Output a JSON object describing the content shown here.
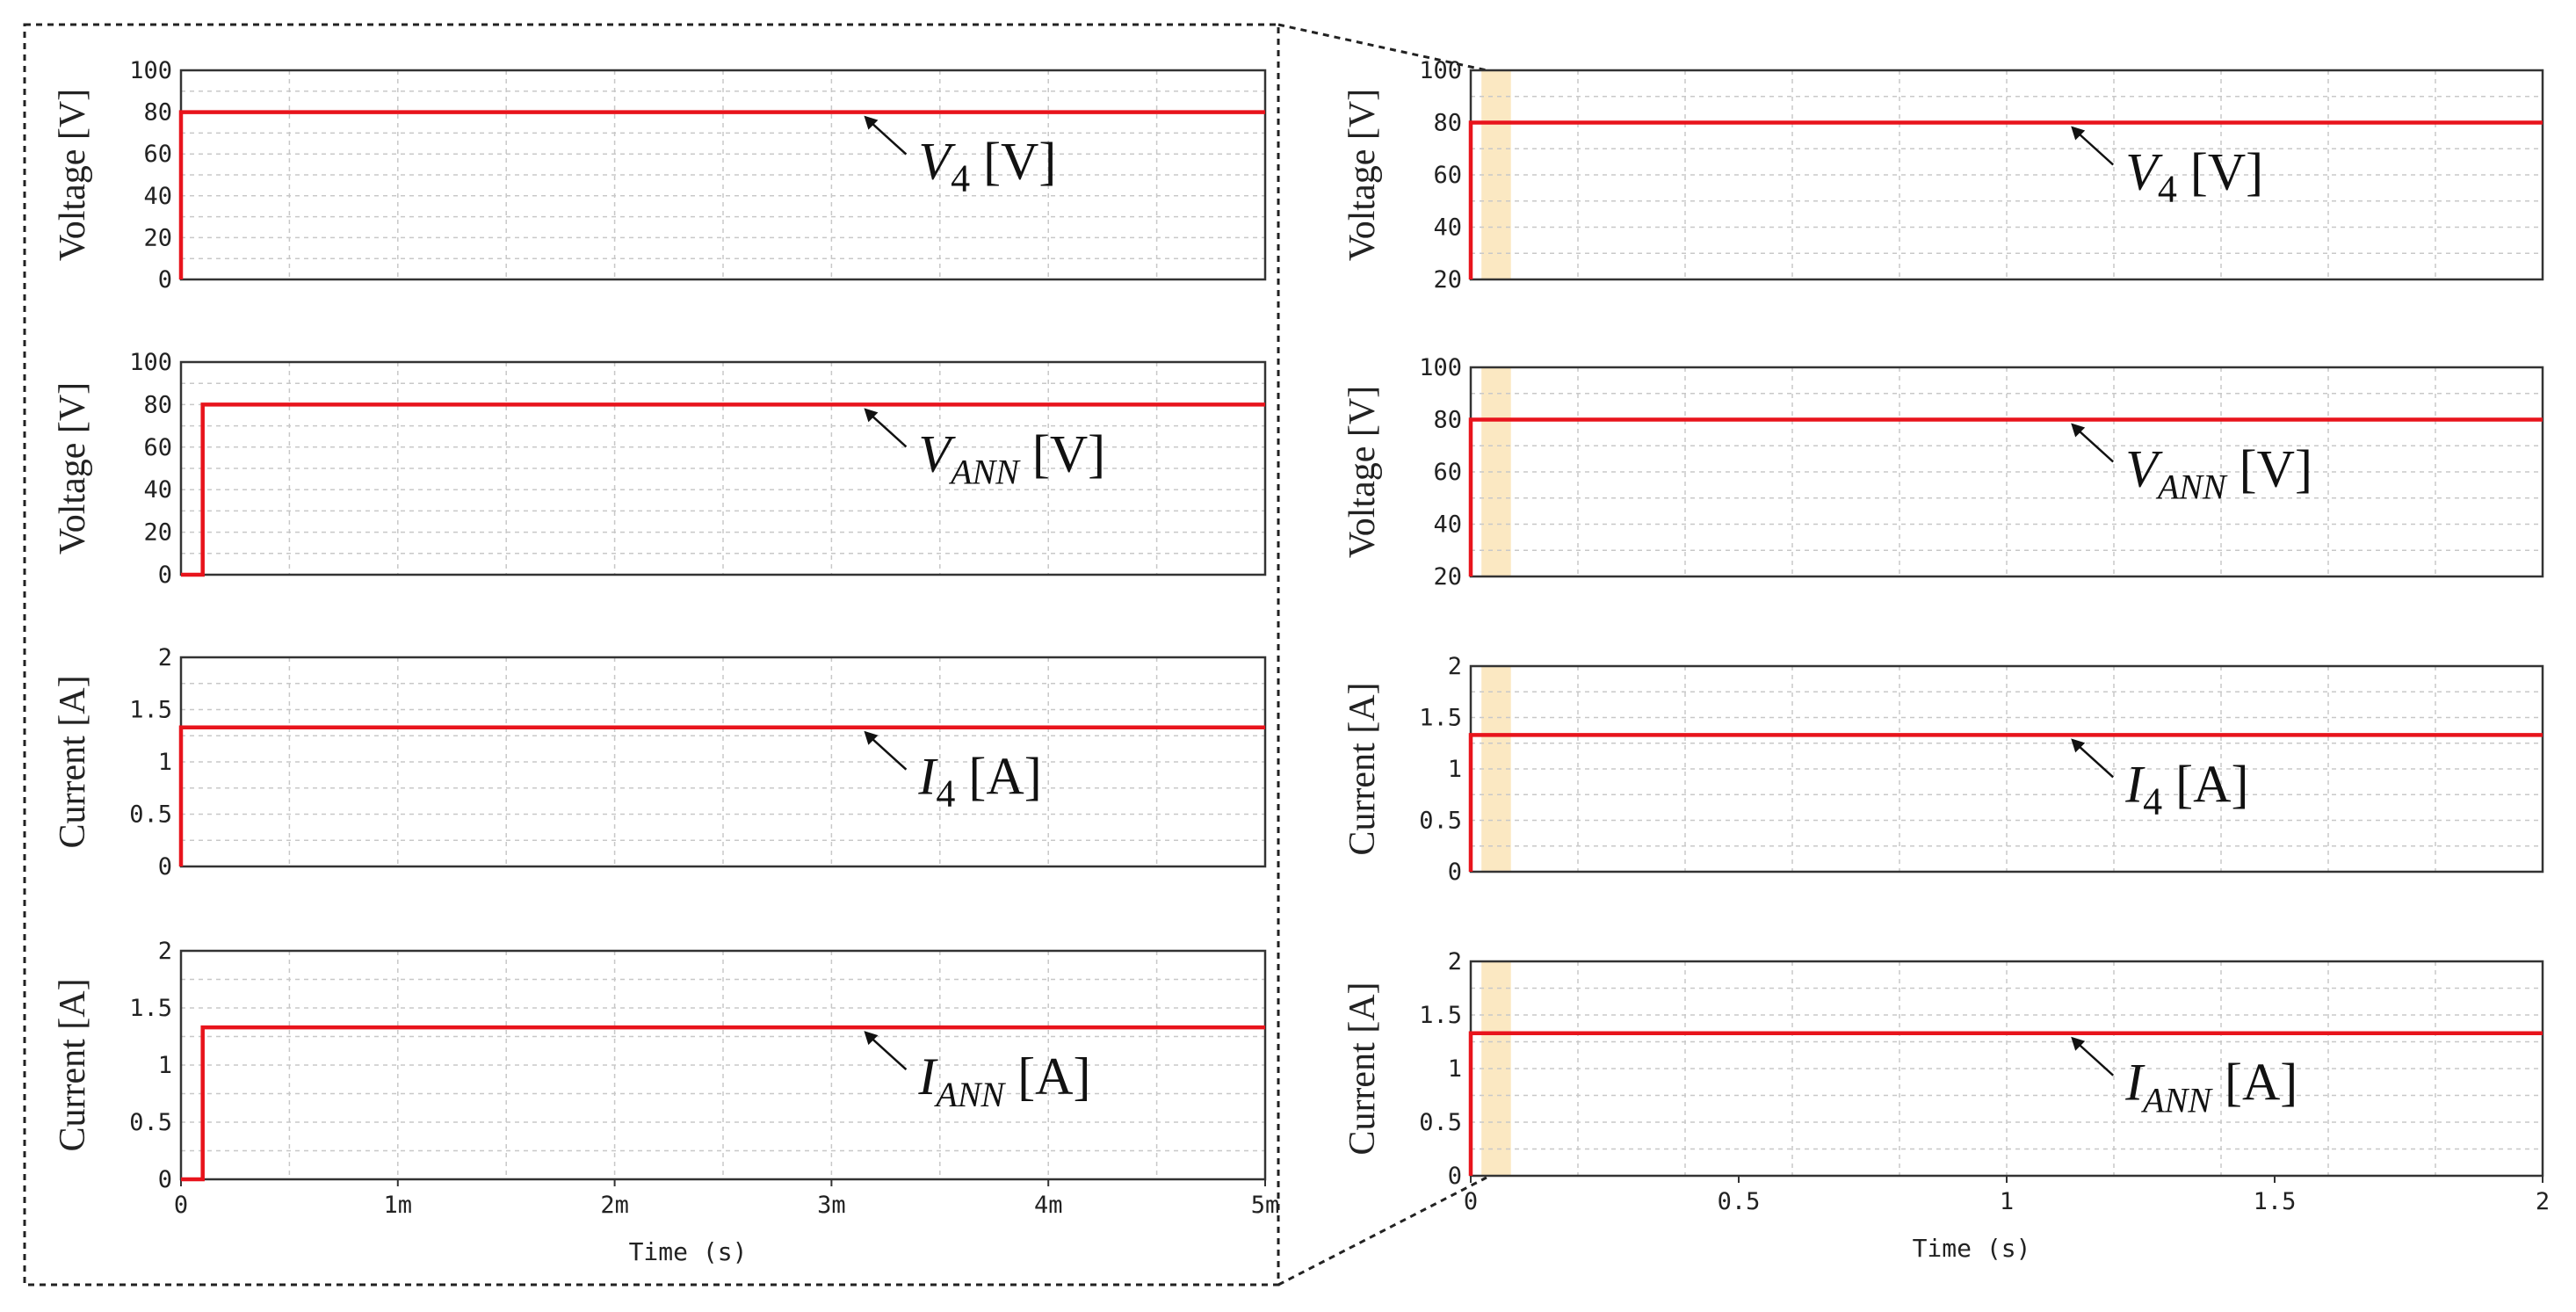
{
  "colors": {
    "trace": "#e8141c",
    "grid": "#c8c8c8",
    "highlight": "#fbe8c2",
    "axis": "#333333",
    "text": "#222222"
  },
  "chart_data": [
    {
      "panel": "left",
      "type": "line",
      "title": "",
      "ylabel": "Voltage [V]",
      "ylim": [
        0,
        100
      ],
      "yticks": [
        0,
        20,
        40,
        60,
        80,
        100
      ],
      "ytick_labels": [
        "0",
        "20",
        "40",
        "60",
        "80",
        "100"
      ],
      "xlim": [
        0,
        5
      ],
      "x_unit": "ms",
      "series": [
        {
          "name": "V4 [V]",
          "points": [
            [
              0,
              0
            ],
            [
              0,
              80
            ],
            [
              5,
              80
            ]
          ]
        }
      ],
      "annotation": {
        "main": "V",
        "sub": "4",
        "unit": " [V]",
        "x": 3.15,
        "y": 80
      }
    },
    {
      "panel": "left",
      "type": "line",
      "title": "",
      "ylabel": "Voltage [V]",
      "ylim": [
        0,
        100
      ],
      "yticks": [
        0,
        20,
        40,
        60,
        80,
        100
      ],
      "ytick_labels": [
        "0",
        "20",
        "40",
        "60",
        "80",
        "100"
      ],
      "xlim": [
        0,
        5
      ],
      "x_unit": "ms",
      "series": [
        {
          "name": "VANN [V]",
          "points": [
            [
              0,
              0
            ],
            [
              0.1,
              0
            ],
            [
              0.1,
              80
            ],
            [
              5,
              80
            ]
          ]
        }
      ],
      "annotation": {
        "main": "V",
        "sub": "ANN",
        "unit": " [V]",
        "x": 3.15,
        "y": 80
      }
    },
    {
      "panel": "left",
      "type": "line",
      "title": "",
      "ylabel": "Current [A]",
      "ylim": [
        0,
        2
      ],
      "yticks": [
        0,
        0.5,
        1,
        1.5,
        2
      ],
      "ytick_labels": [
        "0",
        "0.5",
        "1",
        "1.5",
        "2"
      ],
      "xlim": [
        0,
        5
      ],
      "x_unit": "ms",
      "series": [
        {
          "name": "I4 [A]",
          "points": [
            [
              0,
              0
            ],
            [
              0,
              1.33
            ],
            [
              5,
              1.33
            ]
          ]
        }
      ],
      "annotation": {
        "main": "I",
        "sub": "4",
        "unit": " [A]",
        "x": 3.15,
        "y": 1.33
      }
    },
    {
      "panel": "left",
      "type": "line",
      "title": "",
      "ylabel": "Current [A]",
      "ylim": [
        0,
        2
      ],
      "yticks": [
        0,
        0.5,
        1,
        1.5,
        2
      ],
      "ytick_labels": [
        "0",
        "0.5",
        "1",
        "1.5",
        "2"
      ],
      "xlim": [
        0,
        5
      ],
      "x_unit": "ms",
      "xticks": [
        0,
        1,
        2,
        3,
        4,
        5
      ],
      "xtick_labels": [
        "0",
        "1m",
        "2m",
        "3m",
        "4m",
        "5m"
      ],
      "xlabel": "Time (s)",
      "series": [
        {
          "name": "IANN [A]",
          "points": [
            [
              0,
              0
            ],
            [
              0.1,
              0
            ],
            [
              0.1,
              1.33
            ],
            [
              5,
              1.33
            ]
          ]
        }
      ],
      "annotation": {
        "main": "I",
        "sub": "ANN",
        "unit": " [A]",
        "x": 3.15,
        "y": 1.33
      }
    },
    {
      "panel": "right",
      "type": "line",
      "title": "",
      "ylabel": "Voltage [V]",
      "ylim": [
        20,
        100
      ],
      "yticks": [
        20,
        40,
        60,
        80,
        100
      ],
      "ytick_labels": [
        "20",
        "40",
        "60",
        "80",
        "100"
      ],
      "xlim": [
        0,
        2
      ],
      "x_unit": "s",
      "highlight_x": [
        0.02,
        0.075
      ],
      "series": [
        {
          "name": "V4 [V]",
          "points": [
            [
              0,
              20
            ],
            [
              0,
              80
            ],
            [
              2,
              80
            ]
          ]
        }
      ],
      "annotation": {
        "main": "V",
        "sub": "4",
        "unit": " [V]",
        "x": 1.12,
        "y": 80
      }
    },
    {
      "panel": "right",
      "type": "line",
      "title": "",
      "ylabel": "Voltage [V]",
      "ylim": [
        20,
        100
      ],
      "yticks": [
        20,
        40,
        60,
        80,
        100
      ],
      "ytick_labels": [
        "20",
        "40",
        "60",
        "80",
        "100"
      ],
      "xlim": [
        0,
        2
      ],
      "x_unit": "s",
      "highlight_x": [
        0.02,
        0.075
      ],
      "series": [
        {
          "name": "VANN [V]",
          "points": [
            [
              0,
              20
            ],
            [
              0,
              80
            ],
            [
              2,
              80
            ]
          ]
        }
      ],
      "annotation": {
        "main": "V",
        "sub": "ANN",
        "unit": " [V]",
        "x": 1.12,
        "y": 80
      }
    },
    {
      "panel": "right",
      "type": "line",
      "title": "",
      "ylabel": "Current [A]",
      "ylim": [
        0,
        2
      ],
      "yticks": [
        0,
        0.5,
        1,
        1.5,
        2
      ],
      "ytick_labels": [
        "0",
        "0.5",
        "1",
        "1.5",
        "2"
      ],
      "xlim": [
        0,
        2
      ],
      "x_unit": "s",
      "highlight_x": [
        0.02,
        0.075
      ],
      "series": [
        {
          "name": "I4 [A]",
          "points": [
            [
              0,
              0
            ],
            [
              0,
              1.33
            ],
            [
              2,
              1.33
            ]
          ]
        }
      ],
      "annotation": {
        "main": "I",
        "sub": "4",
        "unit": " [A]",
        "x": 1.12,
        "y": 1.33
      }
    },
    {
      "panel": "right",
      "type": "line",
      "title": "",
      "ylabel": "Current [A]",
      "ylim": [
        0,
        2
      ],
      "yticks": [
        0,
        0.5,
        1,
        1.5,
        2
      ],
      "ytick_labels": [
        "0",
        "0.5",
        "1",
        "1.5",
        "2"
      ],
      "xlim": [
        0,
        2
      ],
      "x_unit": "s",
      "xticks": [
        0,
        0.5,
        1,
        1.5,
        2
      ],
      "xtick_labels": [
        "0",
        "0.5",
        "1",
        "1.5",
        "2"
      ],
      "xlabel": "Time (s)",
      "highlight_x": [
        0.02,
        0.075
      ],
      "series": [
        {
          "name": "IANN [A]",
          "points": [
            [
              0,
              0
            ],
            [
              0,
              1.33
            ],
            [
              2,
              1.33
            ]
          ]
        }
      ],
      "annotation": {
        "main": "I",
        "sub": "ANN",
        "unit": " [A]",
        "x": 1.12,
        "y": 1.33
      }
    }
  ]
}
